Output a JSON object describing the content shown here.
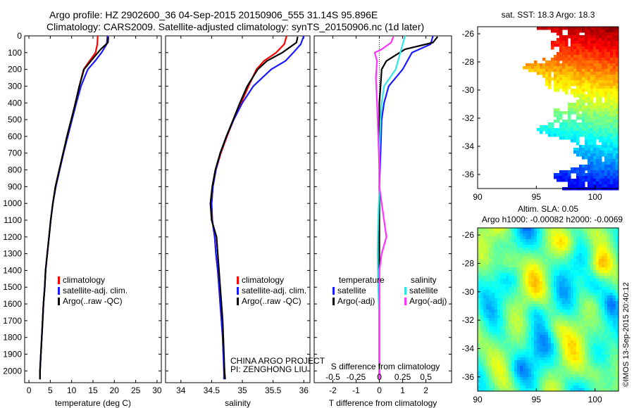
{
  "header": {
    "line1": "Argo profile: HZ 2902600_36 04-Sep-2015 20150906_555 31.14S 95.896E",
    "line2": "Climatology: CARS2009. Satellite-adjusted climatology: synTS_20150906.nc (1d later)"
  },
  "credits": {
    "project": "CHINA ARGO PROJECT",
    "pi": "PI: ZENGHONG LIU",
    "imos": "©IMOS 13-Sep-2015 20:40:12"
  },
  "colors": {
    "climatology": "#ff0000",
    "satellite": "#1a1aff",
    "argo": "#000000",
    "sat_diff": "#33e6e6",
    "argo_diff": "#ff33ff"
  },
  "chart_data": [
    {
      "id": "temperature",
      "type": "line",
      "xlabel": "temperature (deg C)",
      "ylabel": "",
      "xlim": [
        -1,
        31
      ],
      "ylim": [
        2070,
        0
      ],
      "xticks": [
        0,
        5,
        10,
        15,
        20,
        25,
        30
      ],
      "yticks": [
        0,
        100,
        200,
        300,
        400,
        500,
        600,
        700,
        800,
        900,
        1000,
        1100,
        1200,
        1300,
        1400,
        1500,
        1600,
        1700,
        1800,
        1900,
        2000
      ],
      "legend": [
        "climatology",
        "satellite-adj. clim.",
        "Argo(..raw -QC)"
      ],
      "series": [
        {
          "name": "climatology",
          "color": "#ff0000",
          "points": [
            [
              16.1,
              0
            ],
            [
              16.0,
              50
            ],
            [
              15.6,
              100
            ],
            [
              14.2,
              150
            ],
            [
              12.8,
              200
            ],
            [
              11.8,
              300
            ],
            [
              10.9,
              400
            ],
            [
              10.0,
              500
            ],
            [
              9.0,
              600
            ],
            [
              8.0,
              700
            ],
            [
              7.1,
              800
            ],
            [
              6.2,
              900
            ],
            [
              5.6,
              1000
            ],
            [
              5.1,
              1100
            ],
            [
              4.7,
              1200
            ],
            [
              4.3,
              1300
            ],
            [
              3.9,
              1400
            ],
            [
              3.7,
              1500
            ],
            [
              3.4,
              1600
            ],
            [
              3.2,
              1700
            ],
            [
              3.0,
              1800
            ],
            [
              2.8,
              1900
            ],
            [
              2.6,
              2000
            ],
            [
              2.6,
              2050
            ]
          ]
        },
        {
          "name": "satellite-adj. clim.",
          "color": "#1a1aff",
          "points": [
            [
              18.4,
              0
            ],
            [
              18.2,
              50
            ],
            [
              17.0,
              100
            ],
            [
              15.5,
              150
            ],
            [
              13.8,
              200
            ],
            [
              12.2,
              300
            ],
            [
              11.1,
              400
            ],
            [
              10.1,
              500
            ],
            [
              9.1,
              600
            ],
            [
              8.1,
              700
            ],
            [
              7.2,
              800
            ],
            [
              6.3,
              900
            ],
            [
              5.6,
              1000
            ],
            [
              5.1,
              1100
            ],
            [
              4.7,
              1200
            ],
            [
              4.3,
              1300
            ],
            [
              3.9,
              1400
            ],
            [
              3.7,
              1500
            ],
            [
              3.4,
              1600
            ],
            [
              3.2,
              1700
            ],
            [
              3.0,
              1800
            ],
            [
              2.8,
              1900
            ],
            [
              2.6,
              2000
            ],
            [
              2.6,
              2050
            ]
          ]
        },
        {
          "name": "Argo(..raw -QC)",
          "color": "#000000",
          "points": [
            [
              18.6,
              5
            ],
            [
              18.5,
              40
            ],
            [
              16.8,
              80
            ],
            [
              14.5,
              150
            ],
            [
              12.9,
              200
            ],
            [
              11.8,
              300
            ],
            [
              10.9,
              400
            ],
            [
              9.9,
              500
            ],
            [
              8.9,
              600
            ],
            [
              8.0,
              700
            ],
            [
              7.1,
              800
            ],
            [
              6.2,
              900
            ],
            [
              5.6,
              1000
            ],
            [
              5.1,
              1100
            ],
            [
              4.7,
              1200
            ],
            [
              4.3,
              1300
            ],
            [
              3.9,
              1400
            ],
            [
              3.7,
              1500
            ],
            [
              3.4,
              1600
            ],
            [
              3.2,
              1700
            ],
            [
              3.0,
              1800
            ],
            [
              2.8,
              1900
            ],
            [
              2.6,
              2000
            ],
            [
              2.6,
              2050
            ]
          ]
        }
      ]
    },
    {
      "id": "salinity",
      "type": "line",
      "xlabel": "salinity",
      "ylabel": "",
      "xlim": [
        33.75,
        36.1
      ],
      "ylim": [
        2070,
        0
      ],
      "xticks": [
        34,
        34.5,
        35,
        35.5,
        36
      ],
      "xticklabels": [
        "34",
        "34.5",
        "35",
        "35.5",
        "36"
      ],
      "legend": [
        "climatology",
        "satellite-adj. clim.",
        "Argo(..raw -QC)"
      ],
      "series": [
        {
          "name": "climatology",
          "color": "#ff0000",
          "points": [
            [
              35.72,
              0
            ],
            [
              35.68,
              50
            ],
            [
              35.55,
              100
            ],
            [
              35.35,
              150
            ],
            [
              35.23,
              200
            ],
            [
              35.1,
              300
            ],
            [
              34.98,
              400
            ],
            [
              34.86,
              500
            ],
            [
              34.75,
              600
            ],
            [
              34.65,
              700
            ],
            [
              34.57,
              800
            ],
            [
              34.52,
              900
            ],
            [
              34.5,
              1000
            ],
            [
              34.51,
              1100
            ],
            [
              34.55,
              1200
            ],
            [
              34.57,
              1300
            ],
            [
              34.6,
              1400
            ],
            [
              34.62,
              1500
            ],
            [
              34.64,
              1600
            ],
            [
              34.66,
              1700
            ],
            [
              34.68,
              1800
            ],
            [
              34.69,
              1900
            ],
            [
              34.71,
              2000
            ],
            [
              34.72,
              2050
            ]
          ]
        },
        {
          "name": "satellite-adj. clim.",
          "color": "#1a1aff",
          "points": [
            [
              36.0,
              0
            ],
            [
              35.95,
              50
            ],
            [
              35.83,
              100
            ],
            [
              35.7,
              150
            ],
            [
              35.47,
              200
            ],
            [
              35.18,
              300
            ],
            [
              35.0,
              400
            ],
            [
              34.86,
              500
            ],
            [
              34.74,
              600
            ],
            [
              34.64,
              700
            ],
            [
              34.57,
              800
            ],
            [
              34.52,
              900
            ],
            [
              34.5,
              1000
            ],
            [
              34.51,
              1100
            ],
            [
              34.55,
              1200
            ],
            [
              34.57,
              1300
            ],
            [
              34.6,
              1400
            ],
            [
              34.62,
              1500
            ],
            [
              34.64,
              1600
            ],
            [
              34.66,
              1700
            ],
            [
              34.68,
              1800
            ],
            [
              34.69,
              1900
            ],
            [
              34.7,
              2000
            ],
            [
              34.7,
              2050
            ]
          ]
        },
        {
          "name": "Argo(..raw -QC)",
          "color": "#000000",
          "points": [
            [
              35.9,
              5
            ],
            [
              35.88,
              40
            ],
            [
              35.65,
              100
            ],
            [
              35.4,
              150
            ],
            [
              35.25,
              200
            ],
            [
              35.08,
              300
            ],
            [
              34.96,
              400
            ],
            [
              34.85,
              500
            ],
            [
              34.74,
              600
            ],
            [
              34.64,
              700
            ],
            [
              34.56,
              800
            ],
            [
              34.51,
              900
            ],
            [
              34.48,
              1000
            ],
            [
              34.5,
              1100
            ],
            [
              34.58,
              1200
            ],
            [
              34.6,
              1300
            ],
            [
              34.62,
              1400
            ],
            [
              34.64,
              1500
            ],
            [
              34.66,
              1600
            ],
            [
              34.68,
              1700
            ],
            [
              34.69,
              1800
            ],
            [
              34.7,
              1900
            ],
            [
              34.71,
              2000
            ],
            [
              34.72,
              2050
            ]
          ]
        }
      ]
    },
    {
      "id": "difference",
      "type": "line",
      "xlabel": "T difference from climatology",
      "x2label": "S difference from climatology",
      "ylabel": "",
      "xlim": [
        -2.8,
        3.1
      ],
      "ylim": [
        2070,
        0
      ],
      "xticks": [
        -2,
        -1,
        0,
        1,
        2
      ],
      "x2ticks": [
        -0.5,
        -0.25,
        0,
        0.25,
        0.5
      ],
      "x2scale": 4,
      "legend_titles": [
        "temperature",
        "salinity"
      ],
      "legend": [
        "satellite",
        "Argo(-adj)",
        "satellite",
        "Argo(-adj)"
      ],
      "series": [
        {
          "name": "satellite",
          "group": "temperature",
          "color": "#1a1aff",
          "points": [
            [
              2.3,
              0
            ],
            [
              2.2,
              50
            ],
            [
              1.4,
              100
            ],
            [
              1.2,
              150
            ],
            [
              1.0,
              200
            ],
            [
              0.4,
              300
            ],
            [
              0.2,
              400
            ],
            [
              0.1,
              500
            ],
            [
              0.05,
              700
            ],
            [
              0,
              900
            ],
            [
              0,
              2050
            ]
          ]
        },
        {
          "name": "Argo(-adj)",
          "group": "temperature",
          "color": "#000000",
          "points": [
            [
              2.5,
              5
            ],
            [
              2.3,
              40
            ],
            [
              1.1,
              80
            ],
            [
              0.3,
              150
            ],
            [
              0.1,
              200
            ],
            [
              0.05,
              300
            ],
            [
              0,
              400
            ],
            [
              0,
              2050
            ]
          ]
        },
        {
          "name": "satellite",
          "group": "salinity",
          "color": "#33e6e6",
          "points": [
            [
              1.1,
              0
            ],
            [
              1.0,
              50
            ],
            [
              0.9,
              100
            ],
            [
              0.8,
              150
            ],
            [
              0.7,
              200
            ],
            [
              0.2,
              300
            ],
            [
              0.1,
              400
            ],
            [
              0.05,
              500
            ],
            [
              0.0,
              700
            ],
            [
              0,
              900
            ],
            [
              -0.05,
              1100
            ],
            [
              -0.08,
              1300
            ],
            [
              -0.05,
              1500
            ],
            [
              0,
              1700
            ],
            [
              0,
              2050
            ]
          ]
        },
        {
          "name": "Argo(-adj)",
          "group": "salinity",
          "color": "#ff33ff",
          "points": [
            [
              0.6,
              5
            ],
            [
              0.5,
              40
            ],
            [
              0.1,
              80
            ],
            [
              -0.2,
              100
            ],
            [
              -0.1,
              150
            ],
            [
              -0.15,
              250
            ],
            [
              -0.1,
              400
            ],
            [
              -0.05,
              600
            ],
            [
              0,
              800
            ],
            [
              0,
              900
            ],
            [
              0.1,
              1000
            ],
            [
              0.2,
              1100
            ],
            [
              0.3,
              1200
            ],
            [
              0.1,
              1300
            ],
            [
              0,
              1400
            ],
            [
              0,
              2050
            ]
          ]
        }
      ]
    },
    {
      "id": "sst_map",
      "type": "heatmap",
      "title": "sat. SST: 18.3 Argo: 18.3",
      "xlim": [
        90,
        102
      ],
      "ylim": [
        -37,
        -25.5
      ],
      "xticks": [
        90,
        95,
        100
      ],
      "yticks": [
        -26,
        -28,
        -30,
        -32,
        -34,
        -36
      ]
    },
    {
      "id": "sla_map",
      "type": "heatmap",
      "title": "Altim. SLA: 0.05",
      "subtitle": "Argo h1000: -0.00082 h2000: -0.0069",
      "xlim": [
        90,
        102
      ],
      "ylim": [
        -37,
        -25.5
      ],
      "xticks": [
        90,
        95,
        100
      ],
      "yticks": [
        -26,
        -28,
        -30,
        -32,
        -34,
        -36
      ]
    }
  ]
}
